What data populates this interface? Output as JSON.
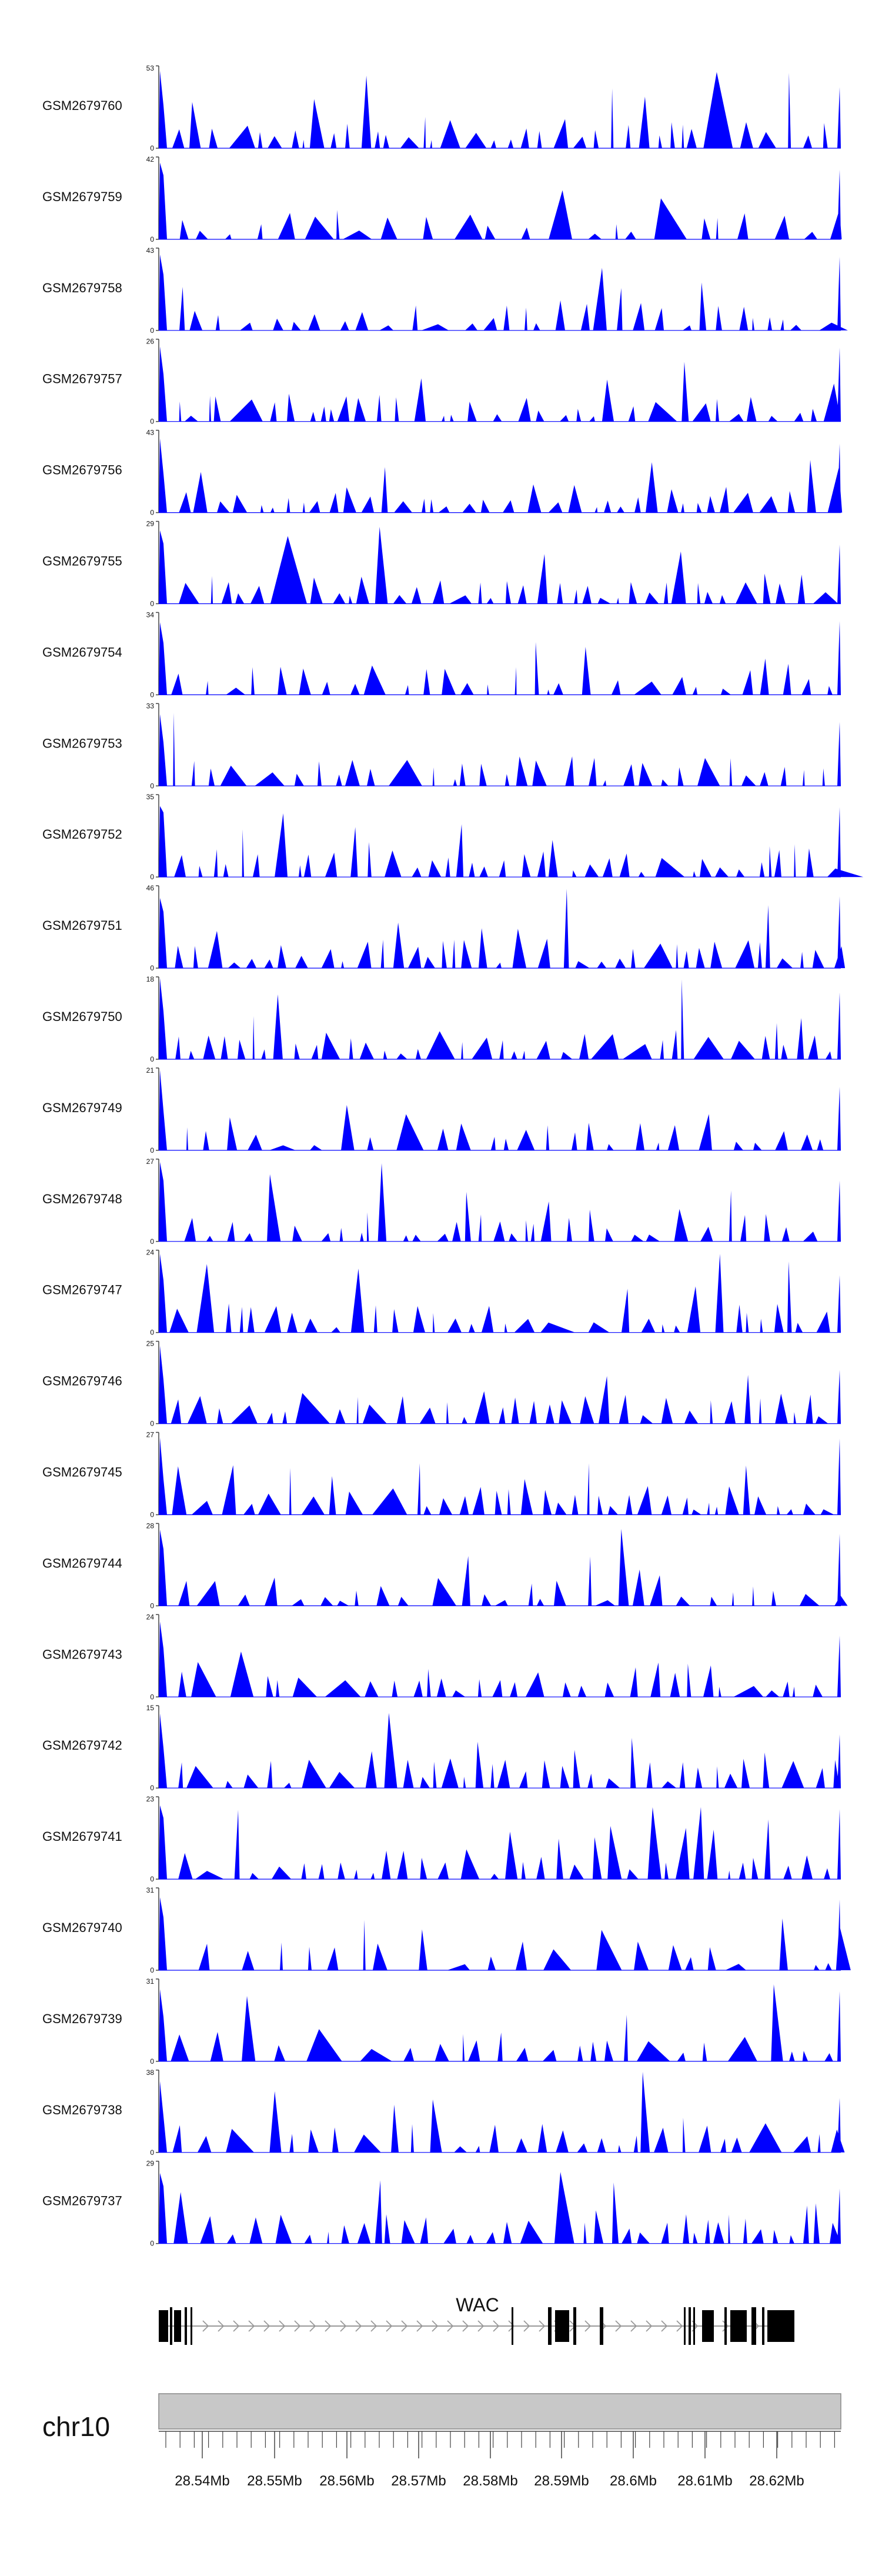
{
  "colors": {
    "fill": "#0000ff",
    "axis": "#444444",
    "ideogram": "#c8c8c8",
    "gene": "#000000"
  },
  "chart_data": {
    "type": "area",
    "gene": {
      "name": "WAC",
      "strand": "+"
    },
    "chromosome": "chr10",
    "x_ticks": [
      "28.54Mb",
      "28.55Mb",
      "28.56Mb",
      "28.57Mb",
      "28.58Mb",
      "28.59Mb",
      "28.6Mb",
      "28.61Mb",
      "28.62Mb"
    ],
    "tracks": [
      {
        "name": "GSM2679760",
        "ymax": "53",
        "ymin": "0"
      },
      {
        "name": "GSM2679759",
        "ymax": "42",
        "ymin": "0"
      },
      {
        "name": "GSM2679758",
        "ymax": "43",
        "ymin": "0"
      },
      {
        "name": "GSM2679757",
        "ymax": "26",
        "ymin": "0"
      },
      {
        "name": "GSM2679756",
        "ymax": "43",
        "ymin": "0"
      },
      {
        "name": "GSM2679755",
        "ymax": "29",
        "ymin": "0"
      },
      {
        "name": "GSM2679754",
        "ymax": "34",
        "ymin": "0"
      },
      {
        "name": "GSM2679753",
        "ymax": "33",
        "ymin": "0"
      },
      {
        "name": "GSM2679752",
        "ymax": "35",
        "ymin": "0"
      },
      {
        "name": "GSM2679751",
        "ymax": "46",
        "ymin": "0"
      },
      {
        "name": "GSM2679750",
        "ymax": "18",
        "ymin": "0"
      },
      {
        "name": "GSM2679749",
        "ymax": "21",
        "ymin": "0"
      },
      {
        "name": "GSM2679748",
        "ymax": "27",
        "ymin": "0"
      },
      {
        "name": "GSM2679747",
        "ymax": "24",
        "ymin": "0"
      },
      {
        "name": "GSM2679746",
        "ymax": "25",
        "ymin": "0"
      },
      {
        "name": "GSM2679745",
        "ymax": "27",
        "ymin": "0"
      },
      {
        "name": "GSM2679744",
        "ymax": "28",
        "ymin": "0"
      },
      {
        "name": "GSM2679743",
        "ymax": "24",
        "ymin": "0"
      },
      {
        "name": "GSM2679742",
        "ymax": "15",
        "ymin": "0"
      },
      {
        "name": "GSM2679741",
        "ymax": "23",
        "ymin": "0"
      },
      {
        "name": "GSM2679740",
        "ymax": "31",
        "ymin": "0"
      },
      {
        "name": "GSM2679739",
        "ymax": "31",
        "ymin": "0"
      },
      {
        "name": "GSM2679738",
        "ymax": "38",
        "ymin": "0"
      },
      {
        "name": "GSM2679737",
        "ymax": "29",
        "ymin": "0"
      }
    ]
  }
}
